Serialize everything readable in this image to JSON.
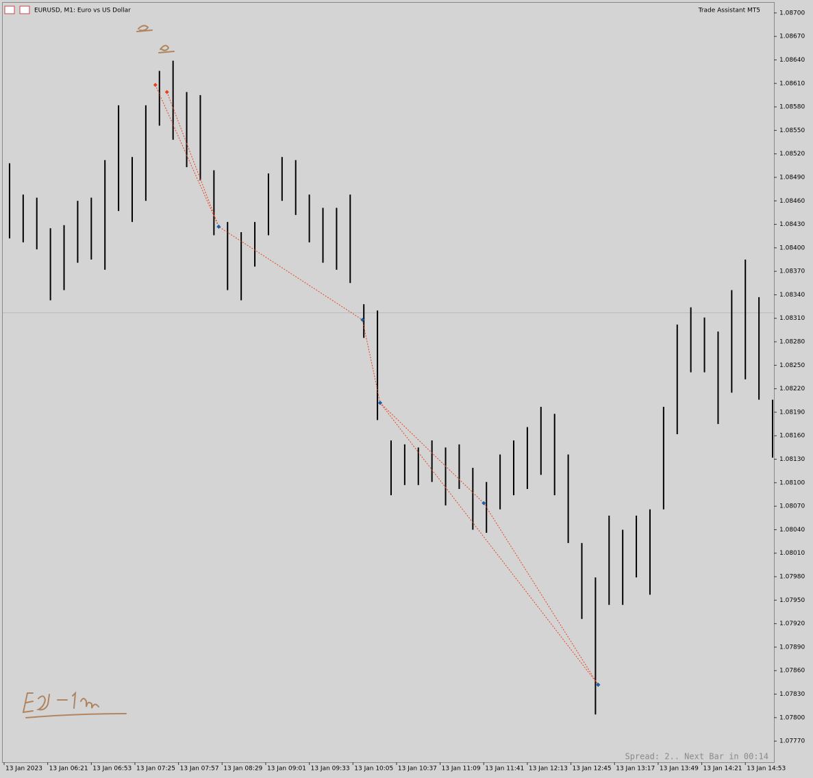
{
  "chart_data": {
    "type": "ohlc",
    "title": "EURUSD, M1:  Euro vs US Dollar",
    "indicator": "Trade Assistant MT5",
    "status": "Spread: 2.. Next Bar in 00:14",
    "color": "#000000",
    "x": [
      353,
      363,
      373,
      383,
      393,
      403,
      413,
      423,
      433,
      443,
      453,
      463,
      473,
      483,
      493,
      503,
      513,
      523,
      533,
      543,
      553,
      563,
      573,
      583,
      593,
      603,
      613,
      623,
      633,
      643,
      653,
      663,
      673,
      683,
      693,
      703,
      713,
      723,
      733,
      743,
      753,
      763,
      773,
      783,
      793,
      803,
      813,
      823,
      833,
      843,
      853,
      863,
      873,
      883,
      893,
      903,
      913
    ],
    "high": [
      1.08508,
      1.08468,
      1.08464,
      1.08425,
      1.08429,
      1.0846,
      1.08464,
      1.08512,
      1.08582,
      1.08516,
      1.08582,
      1.08626,
      1.08639,
      1.08599,
      1.08595,
      1.08499,
      1.08433,
      1.0842,
      1.08433,
      1.08495,
      1.08516,
      1.08512,
      1.08468,
      1.08451,
      1.08451,
      1.08468,
      1.08328,
      1.0832,
      1.08154,
      1.08149,
      1.08145,
      1.08154,
      1.08145,
      1.08149,
      1.08119,
      1.08101,
      1.08136,
      1.08154,
      1.08171,
      1.08197,
      1.08188,
      1.08136,
      1.08023,
      1.07979,
      1.08058,
      1.0804,
      1.08058,
      1.08066,
      1.08197,
      1.08302,
      1.08324,
      1.08311,
      1.08293,
      1.08346,
      1.08385,
      1.08337,
      1.08206
    ],
    "low": [
      1.08412,
      1.08407,
      1.08398,
      1.08333,
      1.08346,
      1.08381,
      1.08385,
      1.08372,
      1.08447,
      1.08433,
      1.0846,
      1.08556,
      1.08538,
      1.08503,
      1.08486,
      1.08416,
      1.08346,
      1.08333,
      1.08376,
      1.08416,
      1.0846,
      1.08442,
      1.08407,
      1.08381,
      1.08372,
      1.08355,
      1.08285,
      1.0818,
      1.08084,
      1.08097,
      1.08097,
      1.08101,
      1.08071,
      1.08092,
      1.0804,
      1.08036,
      1.08066,
      1.08084,
      1.08092,
      1.0811,
      1.08084,
      1.08023,
      1.07926,
      1.07804,
      1.07944,
      1.07944,
      1.07979,
      1.07957,
      1.08066,
      1.08162,
      1.08241,
      1.08241,
      1.08175,
      1.08215,
      1.08232,
      1.08206,
      1.08132
    ],
    "xlim": [
      348,
      914
    ],
    "xticks": [
      {
        "value": 349,
        "label": "13 Jan 2023"
      },
      {
        "value": 381,
        "label": "13 Jan 06:21"
      },
      {
        "value": 413,
        "label": "13 Jan 06:53"
      },
      {
        "value": 445,
        "label": "13 Jan 07:25"
      },
      {
        "value": 477,
        "label": "13 Jan 07:57"
      },
      {
        "value": 509,
        "label": "13 Jan 08:29"
      },
      {
        "value": 541,
        "label": "13 Jan 09:01"
      },
      {
        "value": 573,
        "label": "13 Jan 09:33"
      },
      {
        "value": 605,
        "label": "13 Jan 10:05"
      },
      {
        "value": 637,
        "label": "13 Jan 10:37"
      },
      {
        "value": 669,
        "label": "13 Jan 11:09"
      },
      {
        "value": 701,
        "label": "13 Jan 11:41"
      },
      {
        "value": 733,
        "label": "13 Jan 12:13"
      },
      {
        "value": 765,
        "label": "13 Jan 12:45"
      },
      {
        "value": 797,
        "label": "13 Jan 13:17"
      },
      {
        "value": 829,
        "label": "13 Jan 13:49"
      },
      {
        "value": 861,
        "label": "13 Jan 14:21"
      },
      {
        "value": 893,
        "label": "13 Jan 14:53"
      }
    ],
    "ylim": [
      1.07743,
      1.08713
    ],
    "yticks": [
      {
        "value": 1.087,
        "label": "1.08700"
      },
      {
        "value": 1.0867,
        "label": "1.08670"
      },
      {
        "value": 1.0864,
        "label": "1.08640"
      },
      {
        "value": 1.0861,
        "label": "1.08610"
      },
      {
        "value": 1.0858,
        "label": "1.08580"
      },
      {
        "value": 1.0855,
        "label": "1.08550"
      },
      {
        "value": 1.0852,
        "label": "1.08520"
      },
      {
        "value": 1.0849,
        "label": "1.08490"
      },
      {
        "value": 1.0846,
        "label": "1.08460"
      },
      {
        "value": 1.0843,
        "label": "1.08430"
      },
      {
        "value": 1.084,
        "label": "1.08400"
      },
      {
        "value": 1.0837,
        "label": "1.08370"
      },
      {
        "value": 1.0834,
        "label": "1.08340"
      },
      {
        "value": 1.0831,
        "label": "1.08310"
      },
      {
        "value": 1.0828,
        "label": "1.08280"
      },
      {
        "value": 1.0825,
        "label": "1.08250"
      },
      {
        "value": 1.0822,
        "label": "1.08220"
      },
      {
        "value": 1.0819,
        "label": "1.08190"
      },
      {
        "value": 1.0816,
        "label": "1.08160"
      },
      {
        "value": 1.0813,
        "label": "1.08130"
      },
      {
        "value": 1.081,
        "label": "1.08100"
      },
      {
        "value": 1.0807,
        "label": "1.08070"
      },
      {
        "value": 1.0804,
        "label": "1.08040"
      },
      {
        "value": 1.0801,
        "label": "1.08010"
      },
      {
        "value": 1.0798,
        "label": "1.07980"
      },
      {
        "value": 1.0795,
        "label": "1.07950"
      },
      {
        "value": 1.0792,
        "label": "1.07920"
      },
      {
        "value": 1.0789,
        "label": "1.07890"
      },
      {
        "value": 1.0786,
        "label": "1.07860"
      },
      {
        "value": 1.0783,
        "label": "1.07830"
      },
      {
        "value": 1.078,
        "label": "1.07800"
      },
      {
        "value": 1.0777,
        "label": "1.07770"
      }
    ],
    "hline": 1.08317,
    "zigzag_color": "#e8401c",
    "zigzag": [
      {
        "x": [
          460,
          506.5,
          612,
          625,
          785
        ],
        "values": [
          1.08608,
          1.08427,
          1.08308,
          1.08202,
          1.07842
        ]
      },
      {
        "x": [
          468.5,
          506.5
        ],
        "values": [
          1.08599,
          1.08427
        ]
      },
      {
        "x": [
          625,
          701,
          785
        ],
        "values": [
          1.08202,
          1.08074,
          1.07842
        ]
      }
    ]
  }
}
